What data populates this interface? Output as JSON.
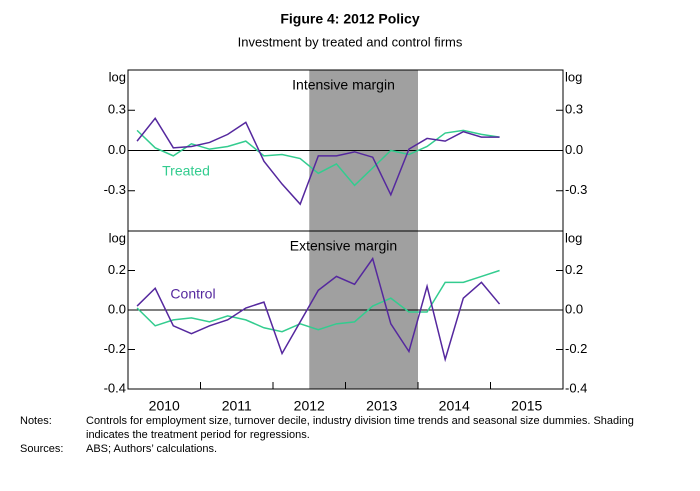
{
  "figure": {
    "title": "Figure 4: 2012 Policy",
    "subtitle": "Investment by treated and control firms"
  },
  "chart_data": [
    {
      "type": "line",
      "title": "Intensive margin",
      "y_label": "log",
      "xlim": [
        2010,
        2016
      ],
      "shade": [
        2012.5,
        2014
      ],
      "shade_color": "#a0a0a0",
      "x": [
        2010.125,
        2010.375,
        2010.625,
        2010.875,
        2011.125,
        2011.375,
        2011.625,
        2011.875,
        2012.125,
        2012.375,
        2012.625,
        2012.875,
        2013.125,
        2013.375,
        2013.625,
        2013.875,
        2014.125,
        2014.375,
        2014.625,
        2014.875,
        2015.125
      ],
      "ylim": [
        -0.6,
        0.6
      ],
      "yticks": [
        -0.3,
        {
          "value": 0,
          "label": "0.0"
        },
        0.3
      ],
      "series": [
        {
          "name": "Treated",
          "color": "#33cc8f",
          "values": [
            0.15,
            0.02,
            -0.04,
            0.05,
            0.01,
            0.03,
            0.07,
            -0.04,
            -0.03,
            -0.06,
            -0.17,
            -0.1,
            -0.26,
            -0.13,
            0.0,
            -0.03,
            0.03,
            0.13,
            0.15,
            0.12,
            0.1
          ]
        },
        {
          "color": "#55289e",
          "values": [
            0.07,
            0.24,
            0.02,
            0.03,
            0.06,
            0.12,
            0.21,
            -0.08,
            -0.25,
            -0.4,
            -0.04,
            -0.04,
            -0.01,
            -0.05,
            -0.33,
            0.01,
            0.09,
            0.07,
            0.14,
            0.1,
            0.1
          ]
        }
      ]
    },
    {
      "type": "line",
      "title": "Extensive margin",
      "y_label": "log",
      "xlim": [
        2010,
        2016
      ],
      "shade": [
        2012.5,
        2014
      ],
      "shade_color": "#a0a0a0",
      "x": [
        2010.125,
        2010.375,
        2010.625,
        2010.875,
        2011.125,
        2011.375,
        2011.625,
        2011.875,
        2012.125,
        2012.375,
        2012.625,
        2012.875,
        2013.125,
        2013.375,
        2013.625,
        2013.875,
        2014.125,
        2014.375,
        2014.625,
        2014.875,
        2015.125
      ],
      "ylim": [
        -0.4,
        0.4
      ],
      "yticks": [
        -0.4,
        -0.2,
        {
          "value": 0,
          "label": "0.0"
        },
        0.2
      ],
      "xticks": [
        2011,
        2012,
        2013,
        2014,
        2015
      ],
      "xtick_labels": [
        {
          "value": 2010.5,
          "label": "2010"
        },
        {
          "value": 2011.5,
          "label": "2011"
        },
        {
          "value": 2012.5,
          "label": "2012"
        },
        {
          "value": 2013.5,
          "label": "2013"
        },
        {
          "value": 2014.5,
          "label": "2014"
        },
        {
          "value": 2015.5,
          "label": "2015"
        }
      ],
      "series": [
        {
          "color": "#33cc8f",
          "values": [
            0.01,
            -0.08,
            -0.05,
            -0.04,
            -0.06,
            -0.03,
            -0.05,
            -0.09,
            -0.11,
            -0.07,
            -0.1,
            -0.07,
            -0.06,
            0.02,
            0.06,
            -0.01,
            -0.01,
            0.14,
            0.14,
            0.17,
            0.2
          ]
        },
        {
          "name": "Control",
          "color": "#55289e",
          "values": [
            0.02,
            0.11,
            -0.08,
            -0.12,
            -0.08,
            -0.05,
            0.01,
            0.04,
            -0.22,
            -0.06,
            0.1,
            0.17,
            0.13,
            0.26,
            -0.07,
            -0.21,
            0.12,
            -0.25,
            0.06,
            0.14,
            0.03
          ]
        }
      ]
    }
  ],
  "notes": {
    "label": "Notes:",
    "text": "Controls for employment size, turnover decile, industry division time trends and seasonal size dummies. Shading indicates the treatment period for regressions.",
    "sources_label": "Sources:",
    "sources_text": "ABS; Authors’ calculations."
  }
}
